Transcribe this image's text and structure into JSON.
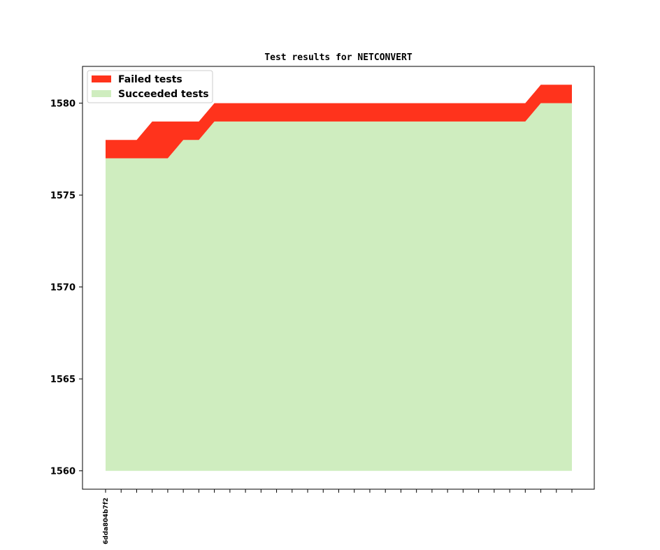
{
  "chart_data": {
    "type": "area",
    "title": "Test results for NETCONVERT",
    "xlabel": "",
    "ylabel": "",
    "ylim": [
      1559,
      1582
    ],
    "yticks": [
      1560,
      1565,
      1570,
      1575,
      1580
    ],
    "x": [
      "6dda804b7f2",
      "",
      "",
      "",
      "",
      "",
      "",
      "",
      "",
      "",
      "",
      "",
      "",
      "",
      "",
      "",
      "",
      "",
      "",
      "",
      "",
      "",
      "",
      "",
      "",
      "",
      "",
      "",
      "",
      "",
      ""
    ],
    "series": [
      {
        "name": "Succeeded tests",
        "color": "#cfedbf",
        "values": [
          1577,
          1577,
          1577,
          1577,
          1577,
          1578,
          1578,
          1579,
          1579,
          1579,
          1579,
          1579,
          1579,
          1579,
          1579,
          1579,
          1579,
          1579,
          1579,
          1579,
          1579,
          1579,
          1579,
          1579,
          1579,
          1579,
          1579,
          1579,
          1580,
          1580,
          1580
        ]
      },
      {
        "name": "Failed tests",
        "color": "#ff331c",
        "values": [
          1,
          1,
          1,
          2,
          2,
          1,
          1,
          1,
          1,
          1,
          1,
          1,
          1,
          1,
          1,
          1,
          1,
          1,
          1,
          1,
          1,
          1,
          1,
          1,
          1,
          1,
          1,
          1,
          1,
          1,
          1
        ]
      }
    ],
    "baseline": 1560,
    "legend_position": "top-left",
    "grid": false
  }
}
